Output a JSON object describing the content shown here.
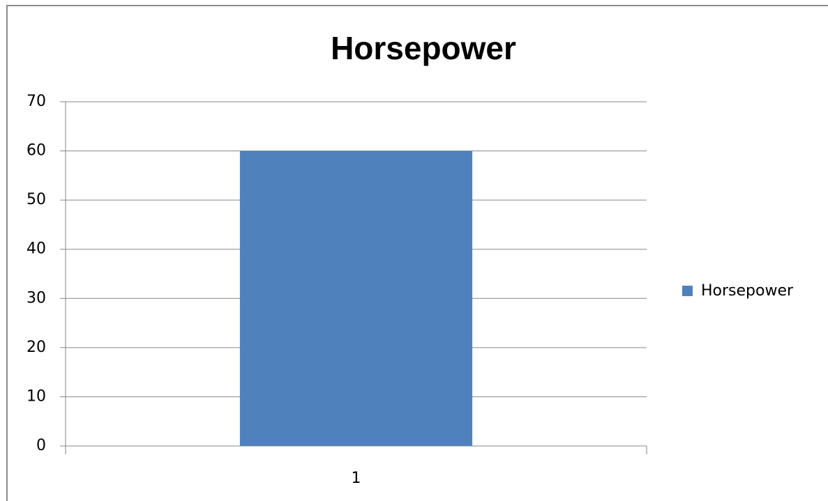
{
  "chart_data": {
    "type": "bar",
    "title": "Horsepower",
    "categories": [
      "1"
    ],
    "series": [
      {
        "name": "Horsepower",
        "color": "#4f81bd",
        "values": [
          60
        ]
      }
    ],
    "ylim": [
      0,
      70
    ],
    "yticks": [
      0,
      10,
      20,
      30,
      40,
      50,
      60,
      70
    ],
    "grid": true,
    "legend": "right"
  }
}
